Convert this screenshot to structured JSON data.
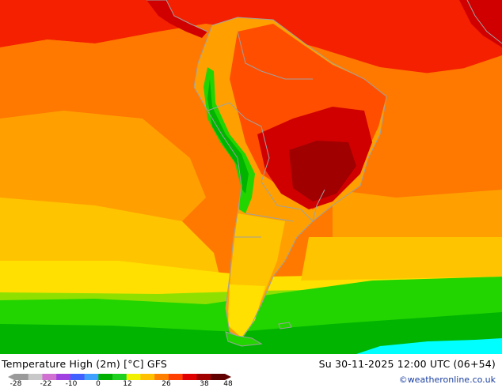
{
  "title": "Temperature High (2m) [°C] GFS",
  "datetime": "Su 30-11-2025 12:00 UTC (06+54)",
  "credit": "©weatheronline.co.uk",
  "legend": {
    "ticks": [
      "-28",
      "-22",
      "-10",
      "0",
      "12",
      "26",
      "38",
      "48"
    ],
    "colors": [
      "#9a9a9a",
      "#c8c8c8",
      "#d070d0",
      "#a040e0",
      "#4060ff",
      "#40a0ff",
      "#00b000",
      "#20d020",
      "#f0f000",
      "#ffc000",
      "#ff8000",
      "#ff4000",
      "#e00000",
      "#a00000",
      "#600000"
    ]
  },
  "map": {
    "region": "South America",
    "palette": {
      "ocean_cold": "#00ffff",
      "green_dark": "#00b400",
      "green": "#22d400",
      "yellow_green": "#8fe000",
      "yellow": "#ffe000",
      "orange_light": "#ffc400",
      "orange": "#ffa000",
      "orange_dark": "#ff7800",
      "red_orange": "#ff4e00",
      "red": "#f42000",
      "red_dark": "#d00000",
      "maroon": "#a00000",
      "border": "#a0a0a0"
    }
  }
}
